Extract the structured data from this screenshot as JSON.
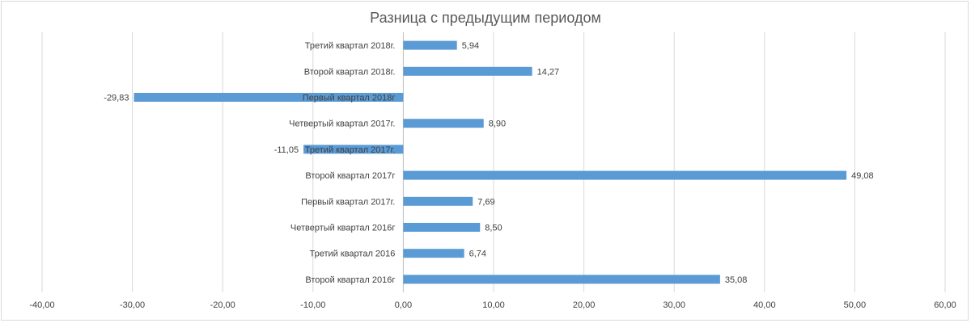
{
  "chart_data": {
    "type": "bar",
    "orientation": "horizontal",
    "title": "Разница с предыдущим периодом",
    "xlabel": "",
    "ylabel": "",
    "xlim": [
      -40,
      60
    ],
    "x_ticks": [
      "-40,00",
      "-30,00",
      "-20,00",
      "-10,00",
      "0,00",
      "10,00",
      "20,00",
      "30,00",
      "40,00",
      "50,00",
      "60,00"
    ],
    "x_tick_values": [
      -40,
      -30,
      -20,
      -10,
      0,
      10,
      20,
      30,
      40,
      50,
      60
    ],
    "grid": true,
    "legend": "none",
    "bar_color": "#5b9bd5",
    "categories": [
      "Третий квартал 2018г.",
      "Второй квартал 2018г.",
      "Первый квартал 2018г",
      "Четвертый квартал 2017г.",
      "Третий квартал 2017г.",
      "Второй квартал 2017г",
      "Первый квартал 2017г.",
      "Четвертый квартал 2016г",
      "Третий квартал 2016",
      "Второй квартал 2016г"
    ],
    "values": [
      5.94,
      14.27,
      -29.83,
      8.9,
      -11.05,
      49.08,
      7.69,
      8.5,
      6.74,
      35.08
    ],
    "value_labels": [
      "5,94",
      "14,27",
      "-29,83",
      "8,90",
      "-11,05",
      "49,08",
      "7,69",
      "8,50",
      "6,74",
      "35,08"
    ]
  }
}
